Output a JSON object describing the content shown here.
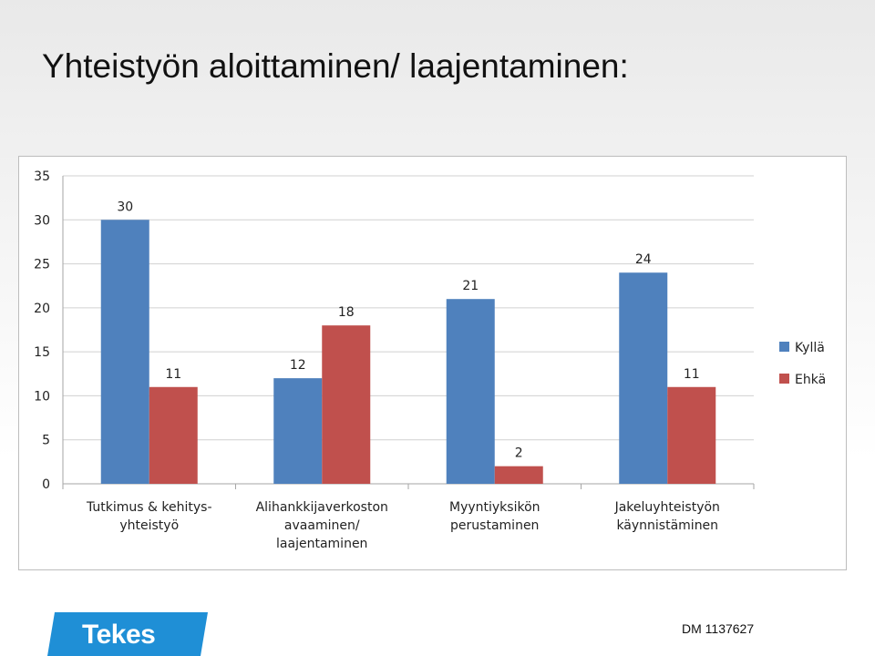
{
  "slide": {
    "title": "Yhteistyön aloittaminen/ laajentaminen:",
    "doc_ref": "DM 1137627",
    "logo_text": "Tekes"
  },
  "chart_data": {
    "type": "bar",
    "categories": [
      [
        "Tutkimus & kehitys-",
        "yhteistyö"
      ],
      [
        "Alihankkijaverkoston",
        "avaaminen/",
        "laajentaminen"
      ],
      [
        "Myyntiyksikön",
        "perustaminen"
      ],
      [
        "Jakeluyhteistyön",
        "käynnistäminen"
      ]
    ],
    "series": [
      {
        "name": "Kyllä",
        "values": [
          30,
          12,
          21,
          24
        ],
        "color": "#4f81bd"
      },
      {
        "name": "Ehkä",
        "values": [
          11,
          18,
          2,
          11
        ],
        "color": "#c0504d"
      }
    ],
    "ylim": [
      0,
      35
    ],
    "yticks": [
      "0",
      "5",
      "10",
      "15",
      "20",
      "25",
      "30",
      "35"
    ],
    "grid": true,
    "legend": "right"
  }
}
